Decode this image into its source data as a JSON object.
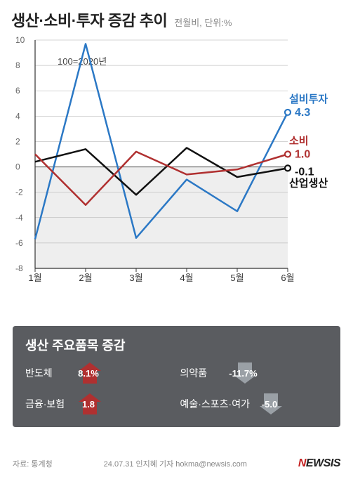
{
  "header": {
    "title": "생산·소비·투자 증감 추이",
    "subtitle": "전월비, 단위:%"
  },
  "chart": {
    "type": "line",
    "background_color": "#ffffff",
    "grid_color": "#aaaaaa",
    "axis_color": "#333333",
    "ylim": [
      -8,
      10
    ],
    "ytick_step": 2,
    "yticks": [
      -8,
      -6,
      -4,
      -2,
      0,
      2,
      4,
      6,
      8,
      10
    ],
    "categories": [
      "1월",
      "2월",
      "3월",
      "4월",
      "5월",
      "6월"
    ],
    "shade_below_zero": "#eeeeee",
    "annotation_100": "100=2020년",
    "series": {
      "investment": {
        "label": "설비투자",
        "color": "#2b78c5",
        "values": [
          -5.7,
          9.7,
          -5.6,
          -1.0,
          -3.5,
          4.3
        ],
        "end_label": "4.3",
        "marker": "open-circle"
      },
      "consumption": {
        "label": "소비",
        "color": "#b03030",
        "values": [
          1.0,
          -3.0,
          1.2,
          -0.6,
          -0.2,
          1.0
        ],
        "end_label": "1.0",
        "marker": "open-circle"
      },
      "production": {
        "label": "산업생산",
        "color": "#111111",
        "values": [
          0.4,
          1.4,
          -2.2,
          1.5,
          -0.8,
          -0.1
        ],
        "end_label": "-0.1",
        "marker": "open-circle"
      }
    },
    "line_width": 2.5,
    "label_fontsize": 15,
    "tick_fontsize": 12
  },
  "panel": {
    "title": "생산 주요품목 증감",
    "bg_color": "#5a5c60",
    "up_color": "#b03030",
    "down_color": "#9aa0a6",
    "items": [
      {
        "label": "반도체",
        "value": "8.1%",
        "dir": "up"
      },
      {
        "label": "의약품",
        "value": "-11.7%",
        "dir": "down"
      },
      {
        "label": "금융·보험",
        "value": "1.8",
        "dir": "up"
      },
      {
        "label": "예술·스포츠·여가",
        "value": "-5.0",
        "dir": "down"
      }
    ]
  },
  "footer": {
    "source": "자료: 통계청",
    "credit": "24.07.31 인지혜 기자 hokma@newsis.com",
    "logo_n": "N",
    "logo_rest": "EWSIS"
  }
}
